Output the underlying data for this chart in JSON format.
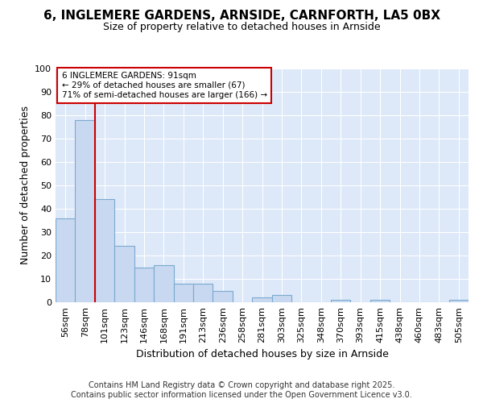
{
  "title_line1": "6, INGLEMERE GARDENS, ARNSIDE, CARNFORTH, LA5 0BX",
  "title_line2": "Size of property relative to detached houses in Arnside",
  "xlabel": "Distribution of detached houses by size in Arnside",
  "ylabel": "Number of detached properties",
  "categories": [
    "56sqm",
    "78sqm",
    "101sqm",
    "123sqm",
    "146sqm",
    "168sqm",
    "191sqm",
    "213sqm",
    "236sqm",
    "258sqm",
    "281sqm",
    "303sqm",
    "325sqm",
    "348sqm",
    "370sqm",
    "393sqm",
    "415sqm",
    "438sqm",
    "460sqm",
    "483sqm",
    "505sqm"
  ],
  "values": [
    36,
    78,
    44,
    24,
    15,
    16,
    8,
    8,
    5,
    0,
    2,
    3,
    0,
    0,
    1,
    0,
    1,
    0,
    0,
    0,
    1
  ],
  "bar_color": "#c8d8f0",
  "bar_edge_color": "#7aaad0",
  "property_line_x": 1.5,
  "annotation_line1": "6 INGLEMERE GARDENS: 91sqm",
  "annotation_line2": "← 29% of detached houses are smaller (67)",
  "annotation_line3": "71% of semi-detached houses are larger (166) →",
  "annotation_box_color": "#ffffff",
  "annotation_box_edge": "#cc0000",
  "line_color": "#cc0000",
  "ylim": [
    0,
    100
  ],
  "yticks": [
    0,
    10,
    20,
    30,
    40,
    50,
    60,
    70,
    80,
    90,
    100
  ],
  "footer_line1": "Contains HM Land Registry data © Crown copyright and database right 2025.",
  "footer_line2": "Contains public sector information licensed under the Open Government Licence v3.0.",
  "figure_bg_color": "#ffffff",
  "plot_bg_color": "#dde8f8",
  "grid_color": "#ffffff",
  "title_fontsize": 11,
  "subtitle_fontsize": 9,
  "axis_label_fontsize": 9,
  "tick_fontsize": 8,
  "footer_fontsize": 7
}
